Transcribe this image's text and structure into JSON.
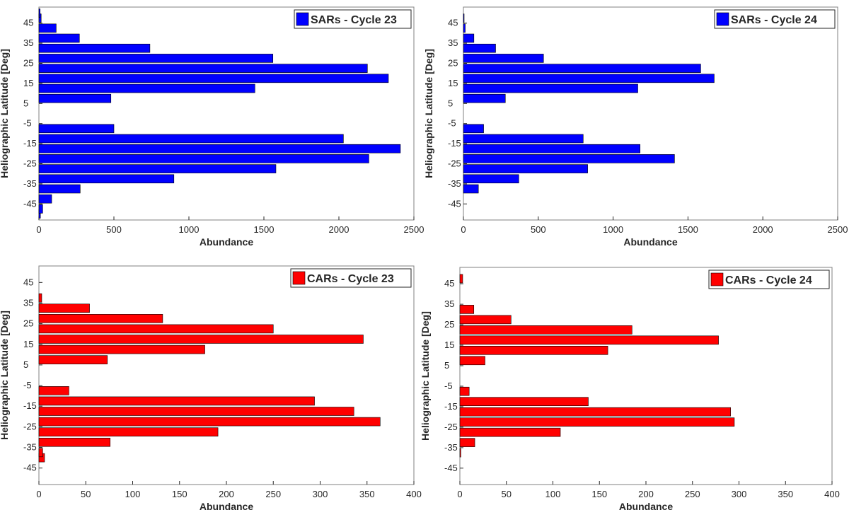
{
  "colors": {
    "sars": "#0000ff",
    "cars": "#ff0000"
  },
  "chart_data": [
    {
      "type": "bar",
      "orientation": "horizontal",
      "legend": "SARs - Cycle 23",
      "legend_position": "top-right",
      "xlabel": "Abundance",
      "ylabel": "Heliographic Latitude [Deg]",
      "xlim": [
        0,
        2500
      ],
      "ylim": [
        -53,
        53
      ],
      "xticks": [
        "0",
        "500",
        "1000",
        "1500",
        "2000",
        "2500"
      ],
      "yticks": [
        "45",
        "35",
        "25",
        "15",
        "5",
        "-5",
        "-15",
        "-25",
        "-35",
        "-45"
      ],
      "color": "#0000ff",
      "latitudes": [
        -50,
        -47.5,
        -42.5,
        -37.5,
        -32.5,
        -27.5,
        -22.5,
        -17.5,
        -12.5,
        -7.5,
        7.5,
        12.5,
        17.5,
        22.5,
        27.5,
        32.5,
        37.5,
        42.5,
        47.5,
        50
      ],
      "values": [
        10,
        25,
        85,
        275,
        900,
        1580,
        2200,
        2410,
        2030,
        500,
        480,
        1440,
        2330,
        2190,
        1560,
        740,
        270,
        115,
        15,
        8
      ]
    },
    {
      "type": "bar",
      "orientation": "horizontal",
      "legend": "SARs - Cycle 24",
      "legend_position": "top-right",
      "xlabel": "Abundance",
      "ylabel": "Heliographic Latitude [Deg]",
      "xlim": [
        0,
        2500
      ],
      "ylim": [
        -53,
        53
      ],
      "xticks": [
        "0",
        "500",
        "1000",
        "1500",
        "2000",
        "2500"
      ],
      "yticks": [
        "45",
        "35",
        "25",
        "15",
        "5",
        "-5",
        "-15",
        "-25",
        "-35",
        "-45"
      ],
      "color": "#0000ff",
      "latitudes": [
        -37.5,
        -32.5,
        -27.5,
        -22.5,
        -17.5,
        -12.5,
        -7.5,
        7.5,
        12.5,
        17.5,
        22.5,
        27.5,
        32.5,
        37.5,
        42.5,
        47.5
      ],
      "values": [
        100,
        370,
        830,
        1410,
        1180,
        800,
        135,
        280,
        1165,
        1675,
        1585,
        535,
        215,
        70,
        12,
        4
      ]
    },
    {
      "type": "bar",
      "orientation": "horizontal",
      "legend": "CARs - Cycle 23",
      "legend_position": "top-right",
      "xlabel": "Abundance",
      "ylabel": "Heliographic Latitude [Deg]",
      "xlim": [
        0,
        400
      ],
      "ylim": [
        -53,
        53
      ],
      "xticks": [
        "0",
        "50",
        "100",
        "150",
        "200",
        "250",
        "300",
        "350",
        "400"
      ],
      "yticks": [
        "45",
        "35",
        "25",
        "15",
        "5",
        "-5",
        "-15",
        "-25",
        "-35",
        "-45"
      ],
      "color": "#ff0000",
      "latitudes": [
        -40,
        -37.5,
        -32.5,
        -27.5,
        -22.5,
        -17.5,
        -12.5,
        -7.5,
        7.5,
        12.5,
        17.5,
        22.5,
        27.5,
        32.5,
        37.5
      ],
      "values": [
        6,
        4,
        76,
        191,
        364,
        336,
        294,
        32,
        73,
        177,
        346,
        250,
        132,
        54,
        3
      ]
    },
    {
      "type": "bar",
      "orientation": "horizontal",
      "legend": "CARs - Cycle 24",
      "legend_position": "top-right",
      "xlabel": "Abundance",
      "ylabel": "Heliographic Latitude [Deg]",
      "xlim": [
        0,
        400
      ],
      "ylim": [
        -53,
        53
      ],
      "xticks": [
        "0",
        "50",
        "100",
        "150",
        "200",
        "250",
        "300",
        "350",
        "400"
      ],
      "yticks": [
        "45",
        "35",
        "25",
        "15",
        "5",
        "-5",
        "-15",
        "-25",
        "-35",
        "-45"
      ],
      "color": "#ff0000",
      "latitudes": [
        -37.5,
        -32.5,
        -27.5,
        -22.5,
        -17.5,
        -12.5,
        -7.5,
        7.5,
        12.5,
        17.5,
        22.5,
        27.5,
        32.5,
        47.5
      ],
      "values": [
        1,
        16,
        108,
        295,
        291,
        138,
        10,
        27,
        159,
        278,
        185,
        55,
        15,
        3
      ]
    }
  ]
}
